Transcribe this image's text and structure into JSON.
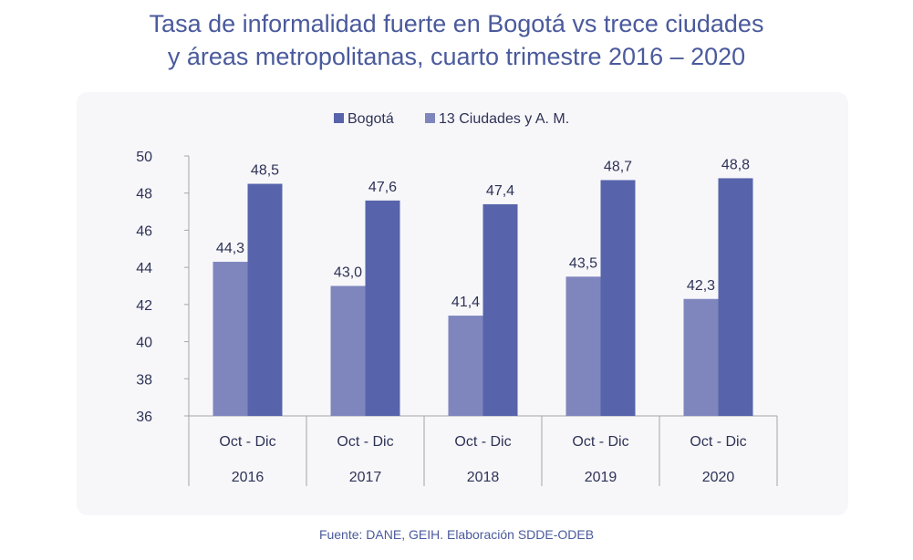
{
  "title_line1": "Tasa de informalidad fuerte en Bogotá vs trece ciudades",
  "title_line2": "y áreas metropolitanas, cuarto trimestre 2016 – 2020",
  "source": "Fuente: DANE, GEIH. Elaboración SDDE-ODEB",
  "colors": {
    "bogota": "#5764ab",
    "ciudades": "#7f86bd",
    "text": "#2e3356",
    "axis": "#a6a6a6"
  },
  "chart_data": {
    "type": "bar",
    "title": "Tasa de informalidad fuerte en Bogotá vs trece ciudades y áreas metropolitanas, cuarto trimestre 2016 – 2020",
    "categories": [
      {
        "period": "Oct - Dic",
        "year": "2016"
      },
      {
        "period": "Oct - Dic",
        "year": "2017"
      },
      {
        "period": "Oct - Dic",
        "year": "2018"
      },
      {
        "period": "Oct - Dic",
        "year": "2019"
      },
      {
        "period": "Oct - Dic",
        "year": "2020"
      }
    ],
    "series": [
      {
        "name": "13 Ciudades y A. M.",
        "values": [
          44.3,
          43.0,
          41.4,
          43.5,
          42.3
        ],
        "labels": [
          "44,3",
          "43,0",
          "41,4",
          "43,5",
          "42,3"
        ]
      },
      {
        "name": "Bogotá",
        "values": [
          48.5,
          47.6,
          47.4,
          48.7,
          48.8
        ],
        "labels": [
          "48,5",
          "47,6",
          "47,4",
          "48,7",
          "48,8"
        ]
      }
    ],
    "legend": [
      "Bogotá",
      "13 Ciudades y A. M."
    ],
    "legend_position": "top",
    "ylim": [
      36,
      50
    ],
    "yticks": [
      "36",
      "38",
      "40",
      "42",
      "44",
      "46",
      "48",
      "50"
    ],
    "xlabel": "",
    "ylabel": "",
    "grid": false
  }
}
